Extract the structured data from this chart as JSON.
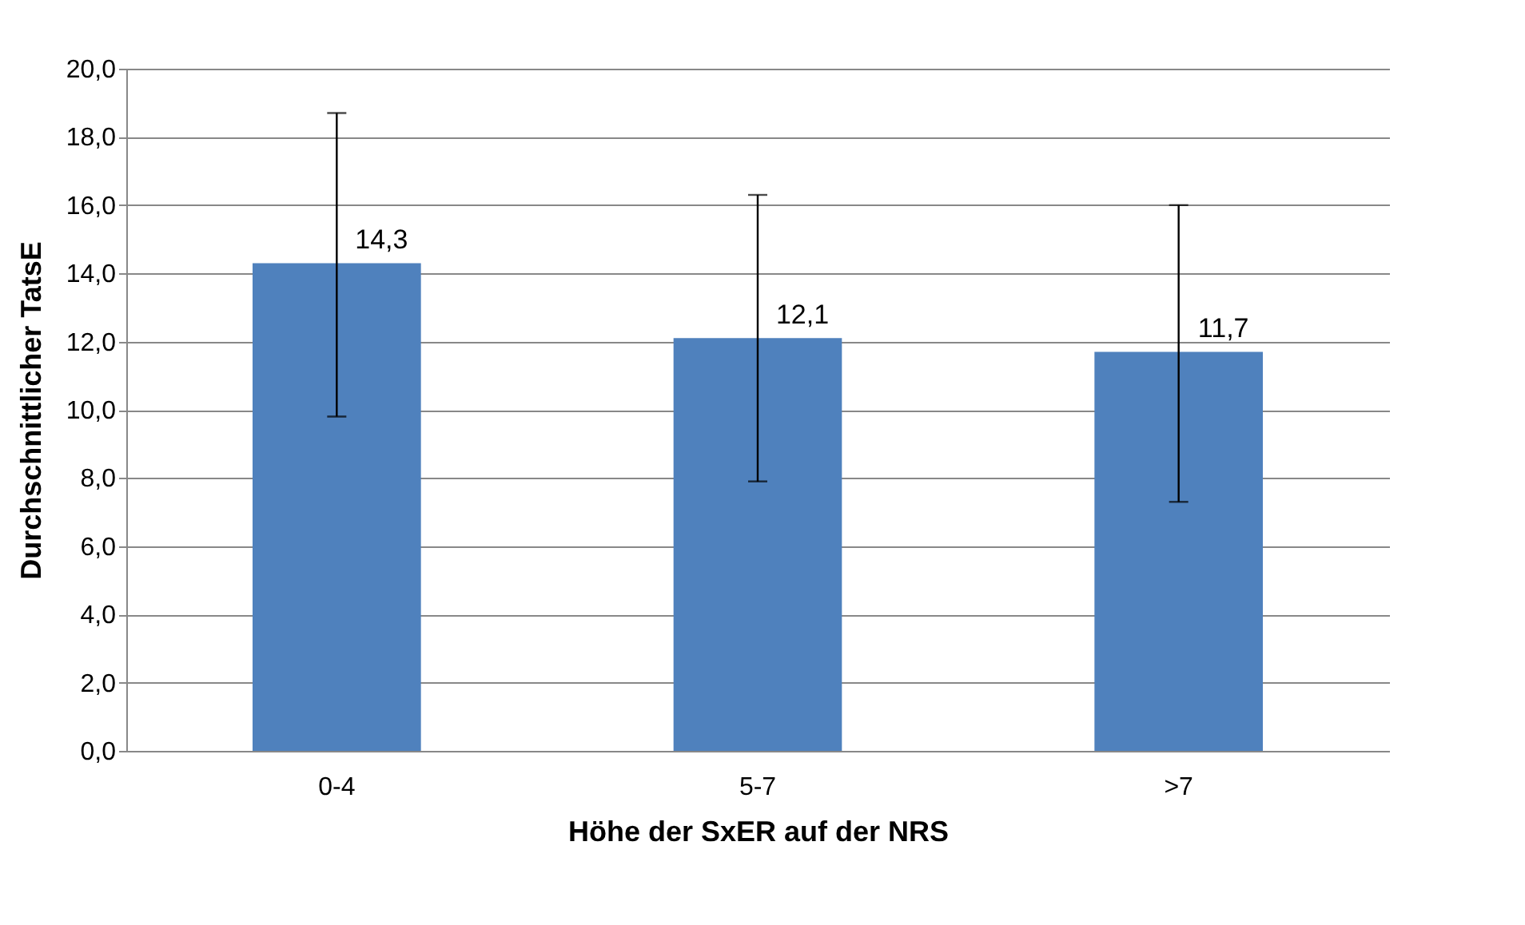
{
  "chart_data": {
    "type": "bar",
    "xlabel": "Höhe der SxER auf der NRS",
    "ylabel": "Durchschnittlicher TatsE",
    "categories": [
      "0-4",
      "5-7",
      ">7"
    ],
    "values": [
      14.3,
      12.1,
      11.7
    ],
    "value_labels": [
      "14,3",
      "12,1",
      "11,7"
    ],
    "errors": [
      [
        9.8,
        18.7
      ],
      [
        7.9,
        16.3
      ],
      [
        7.3,
        16.0
      ]
    ],
    "color": "#4f81bd",
    "ylim": [
      0,
      20
    ],
    "yticks": [
      {
        "value": 0,
        "label": "0,0"
      },
      {
        "value": 2,
        "label": "2,0"
      },
      {
        "value": 4,
        "label": "4,0"
      },
      {
        "value": 6,
        "label": "6,0"
      },
      {
        "value": 8,
        "label": "8,0"
      },
      {
        "value": 10,
        "label": "10,0"
      },
      {
        "value": 12,
        "label": "12,0"
      },
      {
        "value": 14,
        "label": "14,0"
      },
      {
        "value": 16,
        "label": "16,0"
      },
      {
        "value": 18,
        "label": "18,0"
      },
      {
        "value": 20,
        "label": "20,0"
      }
    ],
    "grid": "y"
  }
}
